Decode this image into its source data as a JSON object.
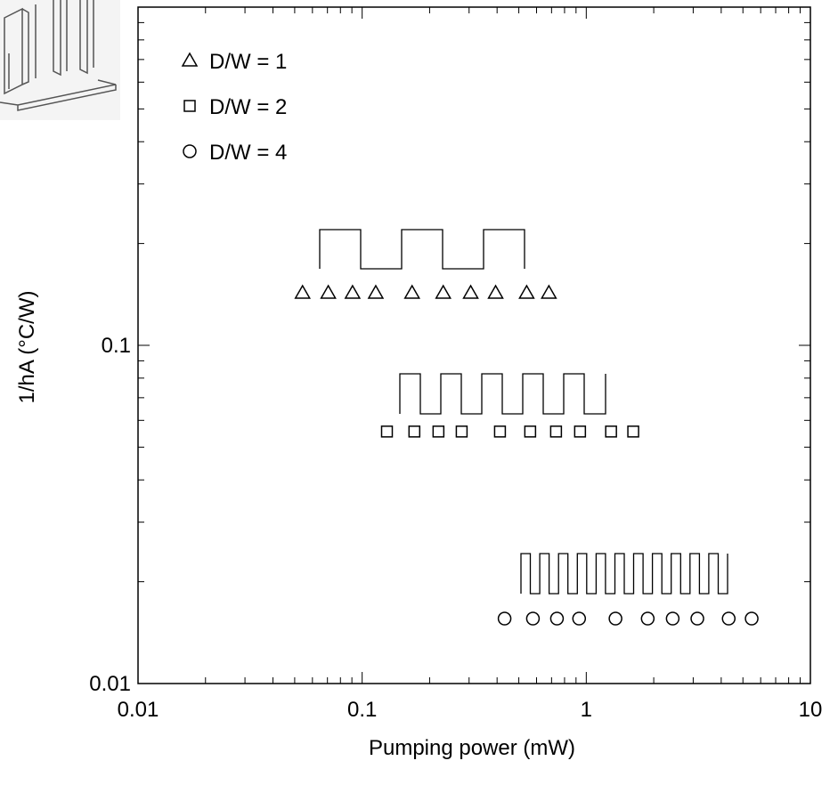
{
  "chart_data": {
    "type": "scatter",
    "x_label": "Pumping power (mW)",
    "y_label": "1/hA (°C/W)",
    "log_x": true,
    "log_y": true,
    "xlim": [
      0.01,
      10
    ],
    "xticks": [
      0.01,
      0.1,
      1,
      10
    ],
    "ylim": [
      0.01,
      1
    ],
    "yticks": [
      0.01,
      0.1
    ],
    "legend": "upper left",
    "series": [
      {
        "name": "D/W = 1",
        "marker": "triangle",
        "color": "#000000",
        "x": [
          0.0542,
          0.0706,
          0.0906,
          0.115,
          0.167,
          0.23,
          0.305,
          0.394,
          0.542,
          0.681
        ],
        "values": [
          0.143,
          0.143,
          0.143,
          0.143,
          0.143,
          0.143,
          0.143,
          0.143,
          0.143,
          0.143
        ]
      },
      {
        "name": "D/W = 2",
        "marker": "square",
        "color": "#000000",
        "x": [
          0.129,
          0.171,
          0.219,
          0.278,
          0.412,
          0.562,
          0.733,
          0.938,
          1.29,
          1.62
        ],
        "values": [
          0.0556,
          0.0556,
          0.0556,
          0.0556,
          0.0556,
          0.0556,
          0.0556,
          0.0556,
          0.0556,
          0.0556
        ]
      },
      {
        "name": "D/W = 4",
        "marker": "circle",
        "color": "#000000",
        "x": [
          0.432,
          0.578,
          0.74,
          0.929,
          1.35,
          1.88,
          2.43,
          3.13,
          4.32,
          5.47
        ],
        "values": [
          0.01556,
          0.01556,
          0.01556,
          0.01556,
          0.01556,
          0.01556,
          0.01556,
          0.01556,
          0.01556,
          0.01556
        ]
      }
    ]
  }
}
